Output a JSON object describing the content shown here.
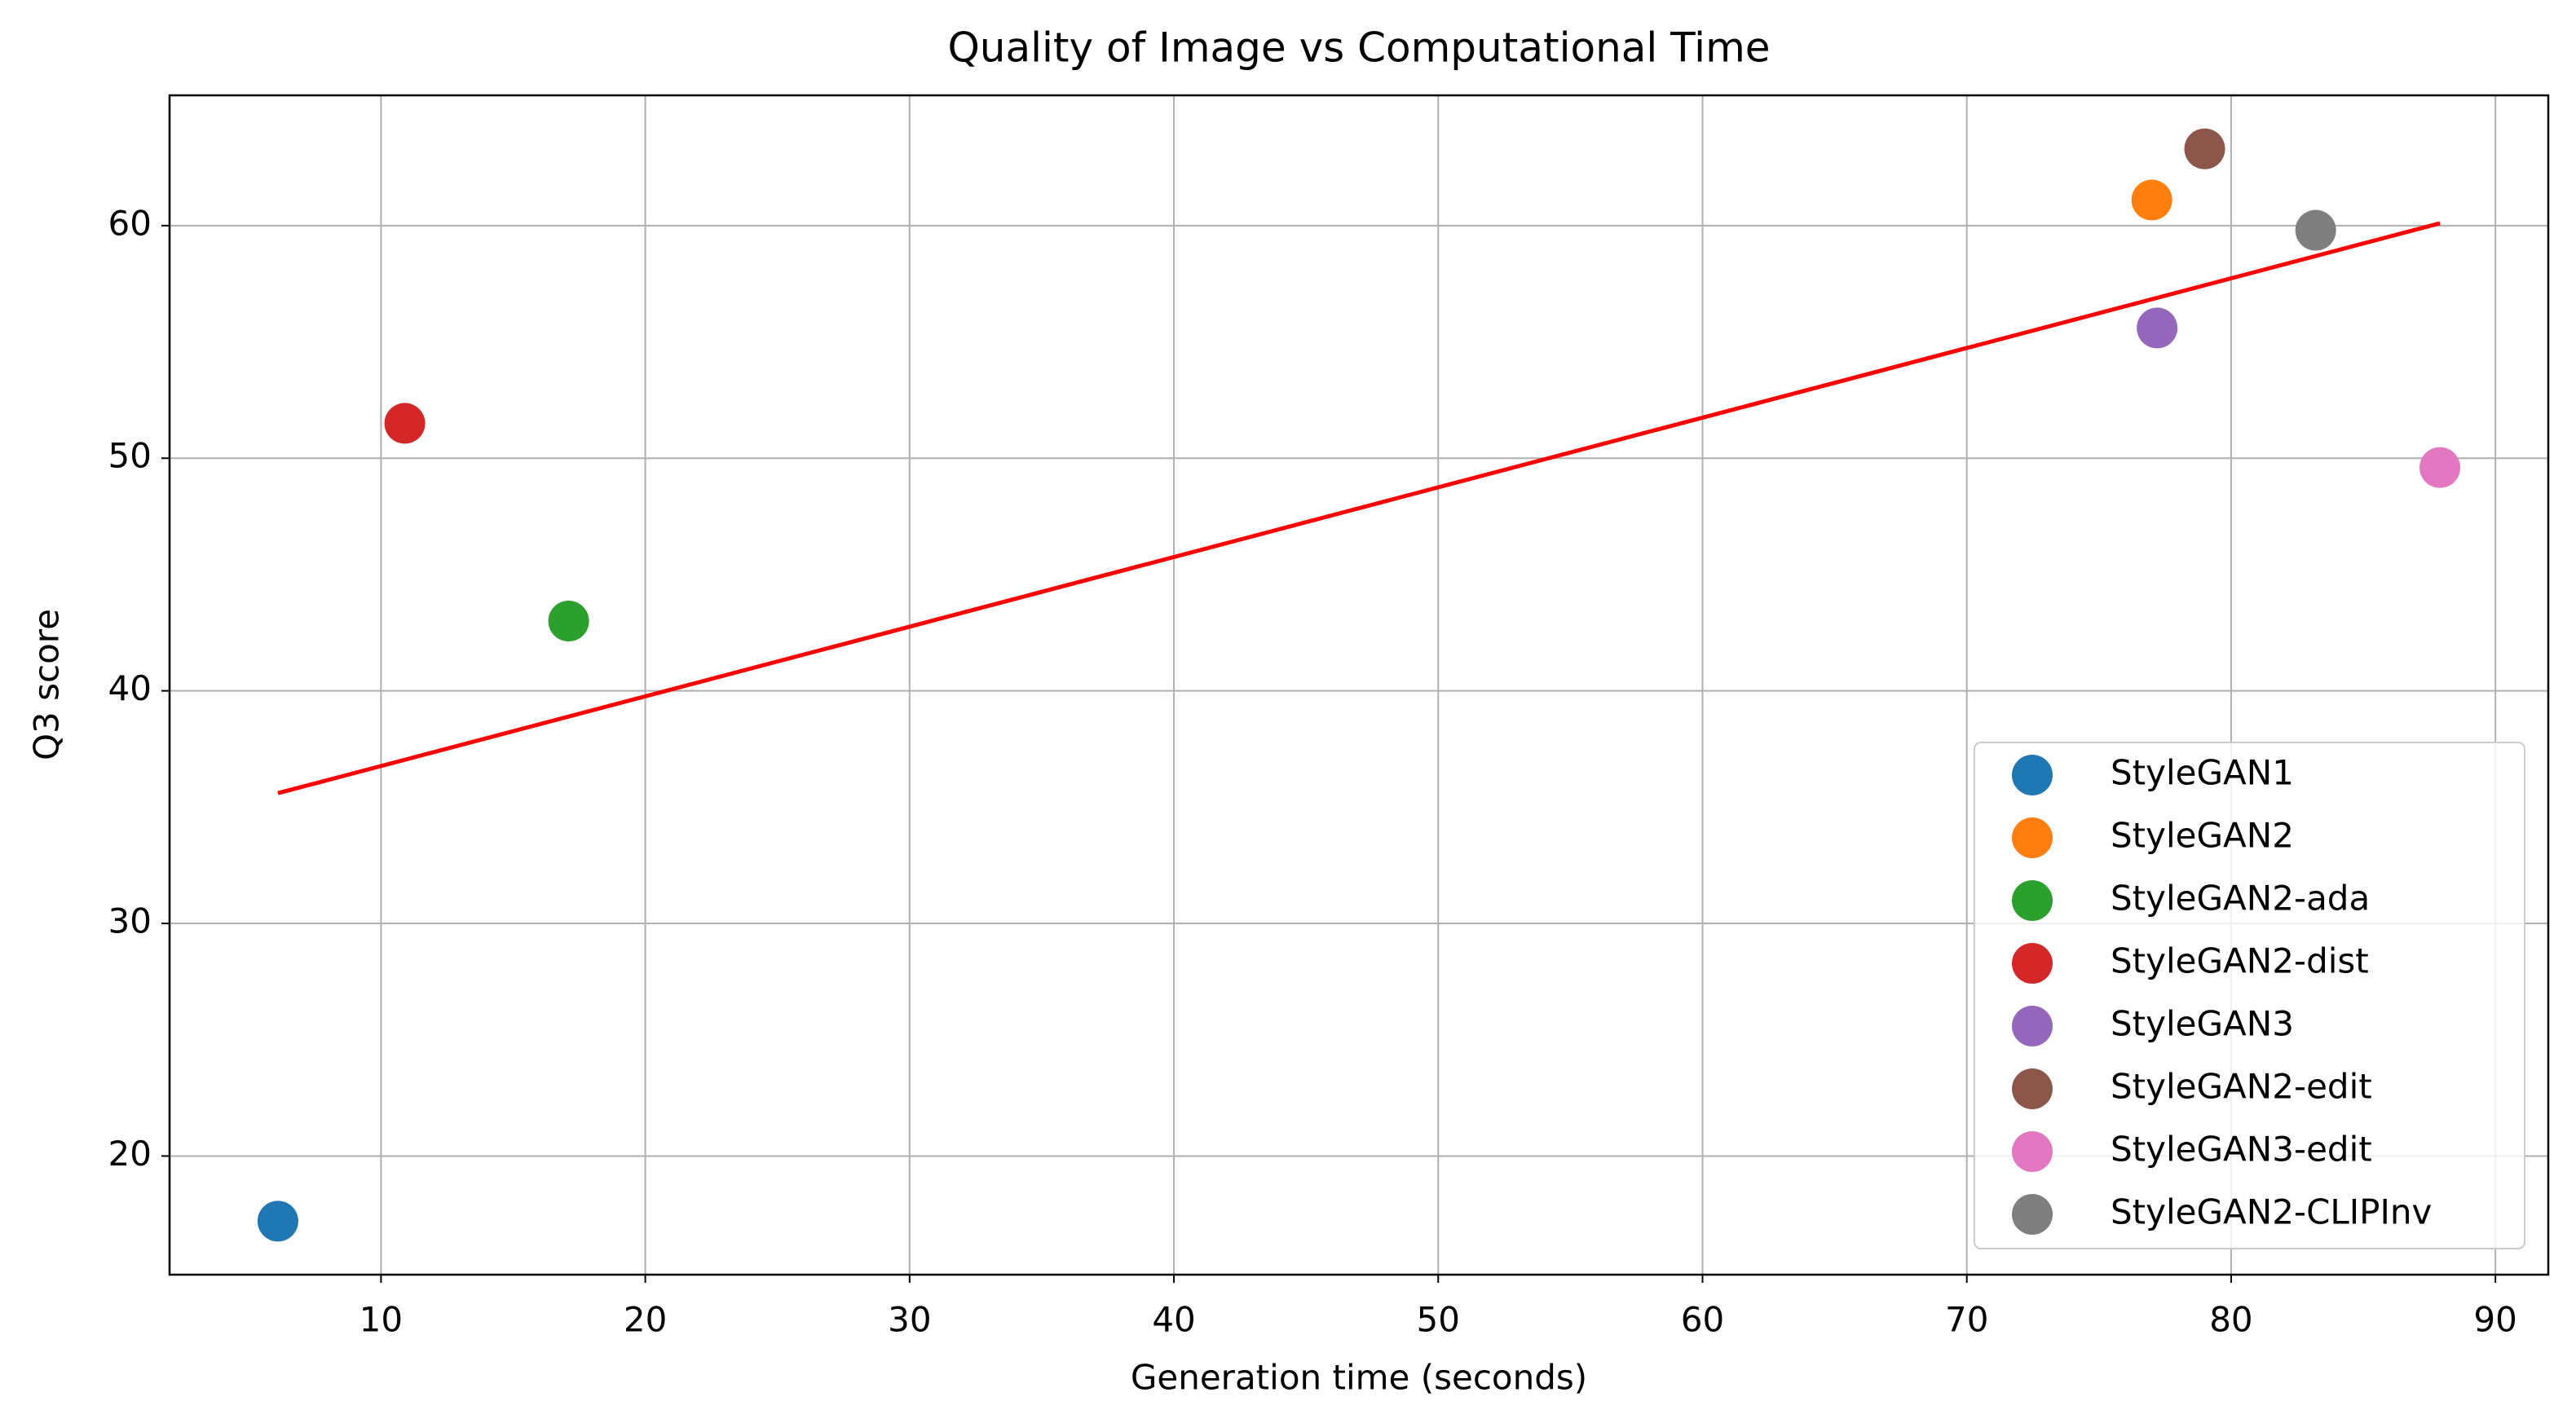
{
  "chart_data": {
    "type": "scatter",
    "title": "Quality of Image vs Computational Time",
    "x_label": "Generation time (seconds)",
    "y_label": "Q3 score",
    "series": [
      {
        "name": "StyleGAN1",
        "color": "#1f77b4",
        "x": [
          6.1
        ],
        "values": [
          17.2
        ]
      },
      {
        "name": "StyleGAN2",
        "color": "#ff7f0e",
        "x": [
          77.0
        ],
        "values": [
          61.1
        ]
      },
      {
        "name": "StyleGAN2-ada",
        "color": "#2ca02c",
        "x": [
          17.1
        ],
        "values": [
          43.0
        ]
      },
      {
        "name": "StyleGAN2-dist",
        "color": "#d62728",
        "x": [
          10.9
        ],
        "values": [
          51.5
        ]
      },
      {
        "name": "StyleGAN3",
        "color": "#9467bd",
        "x": [
          77.2
        ],
        "values": [
          55.6
        ]
      },
      {
        "name": "StyleGAN2-edit",
        "color": "#8c564b",
        "x": [
          79.0
        ],
        "values": [
          63.3
        ]
      },
      {
        "name": "StyleGAN3-edit",
        "color": "#e377c2",
        "x": [
          87.9
        ],
        "values": [
          49.6
        ]
      },
      {
        "name": "StyleGAN2-CLIPInv",
        "color": "#7f7f7f",
        "x": [
          83.2
        ],
        "values": [
          59.8
        ]
      }
    ],
    "trend_line": {
      "color": "#ff0000",
      "x": [
        6.1,
        87.9
      ],
      "values": [
        35.6,
        60.1
      ]
    },
    "xlim": [
      2.0,
      92.0
    ],
    "ylim": [
      14.9,
      65.6
    ],
    "xticks": [
      10,
      20,
      30,
      40,
      50,
      60,
      70,
      80,
      90
    ],
    "yticks": [
      20,
      30,
      40,
      50,
      60
    ],
    "grid": true,
    "legend": "lower right"
  }
}
